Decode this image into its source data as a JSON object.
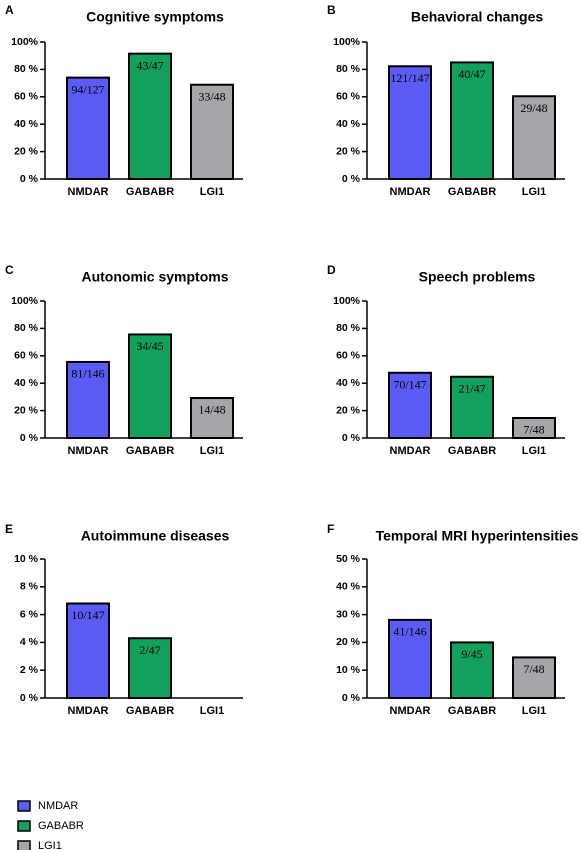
{
  "chart_data": [
    {
      "type": "bar",
      "panel": "A",
      "title": "Cognitive symptoms",
      "categories": [
        "NMDAR",
        "GABABR",
        "LGI1"
      ],
      "colors": [
        "#5b5bf5",
        "#13a05d",
        "#a6a6aa"
      ],
      "values": [
        74.0,
        91.5,
        68.8
      ],
      "value_labels": [
        "94/127",
        "43/47",
        "33/48"
      ],
      "ylim": [
        0,
        100
      ],
      "yticks": [
        {
          "value": 0,
          "label": "0 %"
        },
        {
          "value": 20,
          "label": "20 %"
        },
        {
          "value": 40,
          "label": "40 %"
        },
        {
          "value": 60,
          "label": "60 %"
        },
        {
          "value": 80,
          "label": "80 %"
        },
        {
          "value": 100,
          "label": "100%"
        }
      ]
    },
    {
      "type": "bar",
      "panel": "B",
      "title": "Behavioral changes",
      "categories": [
        "NMDAR",
        "GABABR",
        "LGI1"
      ],
      "colors": [
        "#5b5bf5",
        "#13a05d",
        "#a6a6aa"
      ],
      "values": [
        82.3,
        85.1,
        60.4
      ],
      "value_labels": [
        "121/147",
        "40/47",
        "29/48"
      ],
      "ylim": [
        0,
        100
      ],
      "yticks": [
        {
          "value": 0,
          "label": "0 %"
        },
        {
          "value": 20,
          "label": "20 %"
        },
        {
          "value": 40,
          "label": "40 %"
        },
        {
          "value": 60,
          "label": "60 %"
        },
        {
          "value": 80,
          "label": "80 %"
        },
        {
          "value": 100,
          "label": "100%"
        }
      ]
    },
    {
      "type": "bar",
      "panel": "C",
      "title": "Autonomic symptoms",
      "categories": [
        "NMDAR",
        "GABABR",
        "LGI1"
      ],
      "colors": [
        "#5b5bf5",
        "#13a05d",
        "#a6a6aa"
      ],
      "values": [
        55.5,
        75.6,
        29.2
      ],
      "value_labels": [
        "81/146",
        "34/45",
        "14/48"
      ],
      "ylim": [
        0,
        100
      ],
      "yticks": [
        {
          "value": 0,
          "label": "0 %"
        },
        {
          "value": 20,
          "label": "20 %"
        },
        {
          "value": 40,
          "label": "40 %"
        },
        {
          "value": 60,
          "label": "60 %"
        },
        {
          "value": 80,
          "label": "80 %"
        },
        {
          "value": 100,
          "label": "100%"
        }
      ]
    },
    {
      "type": "bar",
      "panel": "D",
      "title": "Speech problems",
      "categories": [
        "NMDAR",
        "GABABR",
        "LGI1"
      ],
      "colors": [
        "#5b5bf5",
        "#13a05d",
        "#a6a6aa"
      ],
      "values": [
        47.6,
        44.7,
        14.6
      ],
      "value_labels": [
        "70/147",
        "21/47",
        "7/48"
      ],
      "ylim": [
        0,
        100
      ],
      "yticks": [
        {
          "value": 0,
          "label": "0 %"
        },
        {
          "value": 20,
          "label": "20 %"
        },
        {
          "value": 40,
          "label": "40 %"
        },
        {
          "value": 60,
          "label": "60 %"
        },
        {
          "value": 80,
          "label": "80 %"
        },
        {
          "value": 100,
          "label": "100%"
        }
      ]
    },
    {
      "type": "bar",
      "panel": "E",
      "title": "Autoimmune diseases",
      "categories": [
        "NMDAR",
        "GABABR",
        "LGI1"
      ],
      "colors": [
        "#5b5bf5",
        "#13a05d",
        "#a6a6aa"
      ],
      "values": [
        6.8,
        4.3,
        0
      ],
      "value_labels": [
        "10/147",
        "2/47",
        null
      ],
      "ylim": [
        0,
        10
      ],
      "yticks": [
        {
          "value": 0,
          "label": "0 %"
        },
        {
          "value": 2,
          "label": "2 %"
        },
        {
          "value": 4,
          "label": "4 %"
        },
        {
          "value": 6,
          "label": "6 %"
        },
        {
          "value": 8,
          "label": "8 %"
        },
        {
          "value": 10,
          "label": "10 %"
        }
      ]
    },
    {
      "type": "bar",
      "panel": "F",
      "title": "Temporal MRI hyperintensities",
      "categories": [
        "NMDAR",
        "GABABR",
        "LGI1"
      ],
      "colors": [
        "#5b5bf5",
        "#13a05d",
        "#a6a6aa"
      ],
      "values": [
        28.1,
        20.0,
        14.6
      ],
      "value_labels": [
        "41/146",
        "9/45",
        "7/48"
      ],
      "ylim": [
        0,
        50
      ],
      "yticks": [
        {
          "value": 0,
          "label": "0 %"
        },
        {
          "value": 10,
          "label": "10 %"
        },
        {
          "value": 20,
          "label": "20 %"
        },
        {
          "value": 30,
          "label": "30 %"
        },
        {
          "value": 40,
          "label": "40 %"
        },
        {
          "value": 50,
          "label": "50 %"
        }
      ]
    }
  ],
  "legend": {
    "entries": [
      {
        "name": "NMDAR",
        "color": "#5b5bf5"
      },
      {
        "name": "GABABR",
        "color": "#13a05d"
      },
      {
        "name": "LGI1",
        "color": "#a6a6aa"
      }
    ]
  }
}
